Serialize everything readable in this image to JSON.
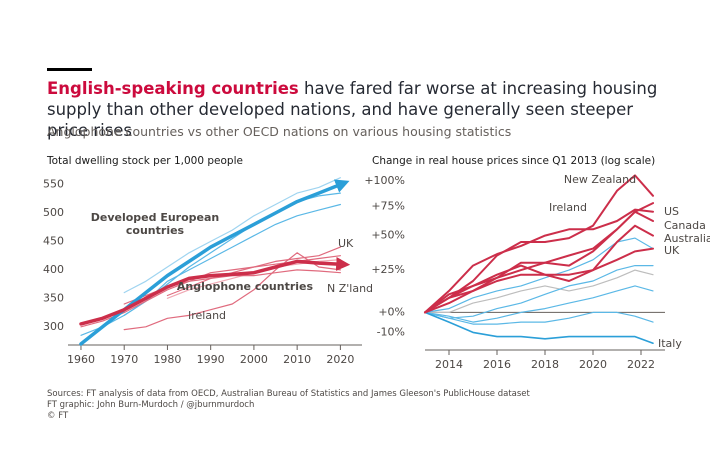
{
  "header": {
    "title_highlight": "English-speaking countries",
    "title_rest": "have fared far worse at increasing housing supply than other developed nations, and have generally seen steeper price rises",
    "subtitle": "Anglophone countries vs other OECD nations on various housing statistics"
  },
  "chart_data": [
    {
      "type": "line",
      "title": "Total dwelling stock per 1,000 people",
      "x": [
        1960,
        1965,
        1970,
        1975,
        1980,
        1985,
        1990,
        1995,
        2000,
        2005,
        2010,
        2015,
        2020
      ],
      "xlim": [
        1957,
        2025
      ],
      "xticks": [
        1960,
        1970,
        1980,
        1990,
        2000,
        2010,
        2020
      ],
      "ylim": [
        268,
        565
      ],
      "yticks": [
        300,
        350,
        400,
        450,
        500,
        550
      ],
      "log_scale": false,
      "series": [
        {
          "color": "#9fd4f0",
          "line_width": 1.2,
          "values": [
            null,
            null,
            360,
            380,
            405,
            430,
            450,
            470,
            495,
            515,
            535,
            545,
            562
          ]
        },
        {
          "color": "#5bb8e6",
          "line_width": 1.2,
          "values": [
            285,
            300,
            320,
            345,
            375,
            405,
            430,
            455,
            480,
            500,
            520,
            530,
            535
          ]
        },
        {
          "color": "#5bb8e6",
          "line_width": 1.2,
          "values": [
            null,
            null,
            320,
            345,
            380,
            400,
            420,
            440,
            460,
            480,
            495,
            505,
            515
          ]
        },
        {
          "color": "#9fd4f0",
          "line_width": 1.2,
          "values": [
            null,
            null,
            null,
            null,
            null,
            null,
            440,
            460,
            480,
            500,
            520,
            535,
            548
          ]
        },
        {
          "color": "#e06b7e",
          "line_width": 1.2,
          "values": [
            300,
            310,
            325,
            345,
            365,
            380,
            395,
            400,
            405,
            410,
            415,
            420,
            425
          ]
        },
        {
          "color": "#f0a8b3",
          "line_width": 1.2,
          "values": [
            null,
            null,
            null,
            null,
            350,
            365,
            375,
            385,
            395,
            405,
            410,
            415,
            418
          ]
        },
        {
          "name": "UK",
          "color": "#e06b7e",
          "line_width": 1.2,
          "values": [
            null,
            null,
            null,
            null,
            355,
            370,
            385,
            395,
            405,
            415,
            420,
            425,
            440
          ]
        },
        {
          "name": "N Z'land",
          "color": "#e06b7e",
          "line_width": 1.2,
          "values": [
            null,
            null,
            340,
            355,
            370,
            380,
            385,
            390,
            390,
            395,
            400,
            398,
            395
          ]
        },
        {
          "name": "Ireland",
          "color": "#e06b7e",
          "line_width": 1.2,
          "values": [
            null,
            null,
            295,
            300,
            315,
            320,
            330,
            340,
            365,
            400,
            430,
            405,
            400
          ]
        },
        {
          "name": "Developed European countries",
          "color": "#2b9fd8",
          "line_width": 3.5,
          "arrow": true,
          "values": [
            270,
            300,
            330,
            360,
            390,
            415,
            440,
            460,
            480,
            500,
            520,
            535,
            550
          ]
        },
        {
          "name": "Anglophone countries",
          "color": "#cc2e4a",
          "line_width": 3.5,
          "arrow": true,
          "values": [
            305,
            315,
            330,
            350,
            370,
            385,
            390,
            392,
            395,
            405,
            415,
            412,
            410
          ]
        }
      ]
    },
    {
      "type": "line",
      "title": "Change in real house prices since Q1 2013 (log scale)",
      "x": [
        2013,
        2014,
        2015,
        2016,
        2017,
        2018,
        2019,
        2020,
        2021,
        2021.75,
        2022.5
      ],
      "xlim": [
        2013,
        2023
      ],
      "xticks": [
        2014,
        2016,
        2018,
        2020,
        2022
      ],
      "ylim": [
        -18,
        112
      ],
      "log_scale": true,
      "zero_line": true,
      "yticks": [
        {
          "value": 100,
          "label": "+100%"
        },
        {
          "value": 75,
          "label": "+75%"
        },
        {
          "value": 50,
          "label": "+50%"
        },
        {
          "value": 25,
          "label": "+25%"
        },
        {
          "value": 0,
          "label": "+0%"
        },
        {
          "value": -10,
          "label": "-10%"
        }
      ],
      "series": [
        {
          "color": "#bdbdbd",
          "line_width": 1.2,
          "values": [
            0,
            0,
            5,
            8,
            12,
            15,
            12,
            15,
            20,
            25,
            22
          ]
        },
        {
          "color": "#5bb8e6",
          "line_width": 1.2,
          "values": [
            0,
            2,
            8,
            12,
            15,
            20,
            25,
            32,
            45,
            48,
            40
          ]
        },
        {
          "color": "#5bb8e6",
          "line_width": 1.2,
          "values": [
            0,
            -3,
            -2,
            2,
            5,
            10,
            15,
            18,
            25,
            28,
            28
          ]
        },
        {
          "color": "#5bb8e6",
          "line_width": 1.2,
          "values": [
            0,
            -2,
            -5,
            -3,
            0,
            2,
            5,
            8,
            12,
            15,
            12
          ]
        },
        {
          "color": "#5bb8e6",
          "line_width": 1.2,
          "values": [
            0,
            -3,
            -6,
            -6,
            -5,
            -5,
            -3,
            0,
            0,
            -2,
            -5
          ]
        },
        {
          "name": "Italy",
          "color": "#2b9fd8",
          "line_width": 1.6,
          "values": [
            0,
            -5,
            -10,
            -12,
            -12,
            -13,
            -12,
            -12,
            -12,
            -12,
            -15
          ]
        },
        {
          "name": "New Zealand",
          "color": "#cc2e4a",
          "line_width": 2,
          "values": [
            0,
            8,
            18,
            35,
            45,
            45,
            48,
            58,
            90,
            106,
            85
          ]
        },
        {
          "name": "Ireland",
          "color": "#cc2e4a",
          "line_width": 2,
          "values": [
            0,
            12,
            28,
            36,
            42,
            50,
            55,
            55,
            62,
            72,
            70
          ]
        },
        {
          "name": "US",
          "color": "#cc2e4a",
          "line_width": 2,
          "values": [
            0,
            8,
            15,
            20,
            25,
            30,
            35,
            40,
            55,
            70,
            78
          ]
        },
        {
          "name": "Canada",
          "color": "#cc2e4a",
          "line_width": 2,
          "values": [
            0,
            8,
            12,
            20,
            30,
            30,
            28,
            38,
            55,
            70,
            62
          ]
        },
        {
          "name": "Australia",
          "color": "#cc2e4a",
          "line_width": 2,
          "values": [
            0,
            10,
            15,
            22,
            28,
            22,
            18,
            25,
            45,
            58,
            50
          ]
        },
        {
          "name": "UK",
          "color": "#cc2e4a",
          "line_width": 2,
          "values": [
            0,
            5,
            12,
            18,
            22,
            22,
            22,
            25,
            32,
            38,
            40
          ]
        }
      ]
    }
  ],
  "footer": {
    "lines": [
      "Sources: FT analysis of data from OECD, Australian Bureau of Statistics and James Gleeson's PublicHouse dataset",
      "FT graphic: John Burn-Murdoch / @jburnmurdoch",
      "© FT"
    ]
  }
}
